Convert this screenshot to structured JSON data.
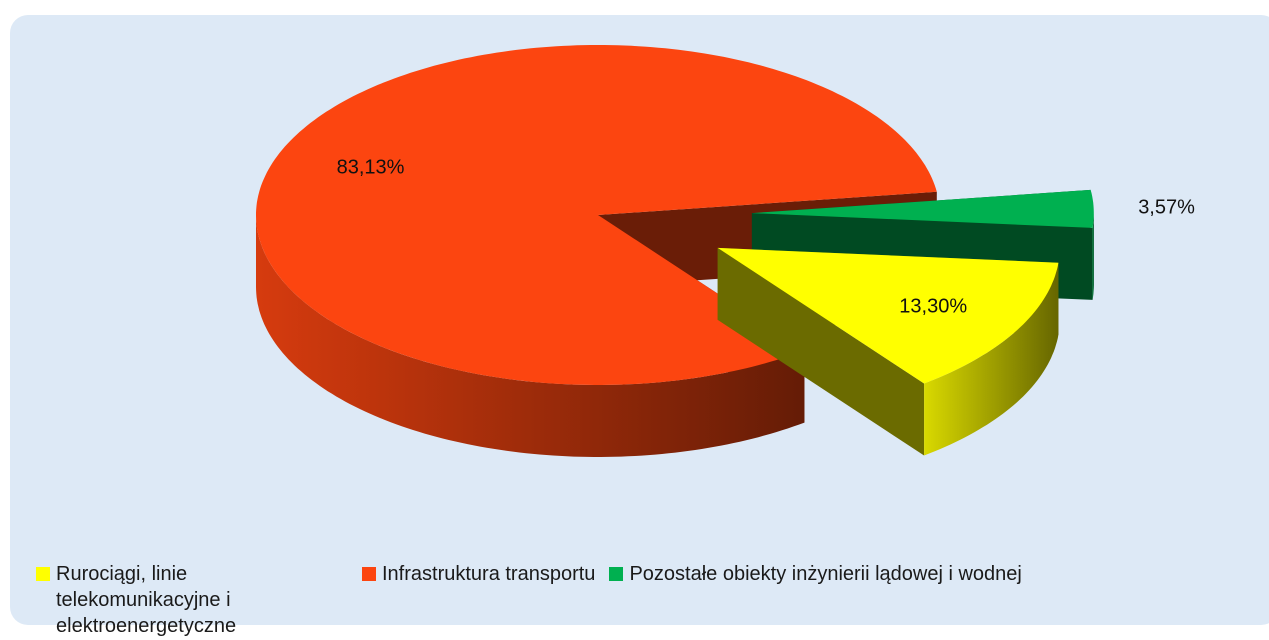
{
  "chart_data": {
    "type": "pie3d",
    "categories": [
      "Rurociągi, linie telekomunikacyjne i elektroenergetyczne",
      "Infrastruktura transportu",
      "Pozostałe obiekty inżynierii lądowej i wodnej"
    ],
    "values": [
      13.3,
      83.13,
      3.57
    ],
    "value_labels": [
      "13,30%",
      "83,13%",
      "3,57%"
    ],
    "colors": [
      "#ffff00",
      "#fc4510",
      "#00b050"
    ],
    "legend": "bottom"
  }
}
